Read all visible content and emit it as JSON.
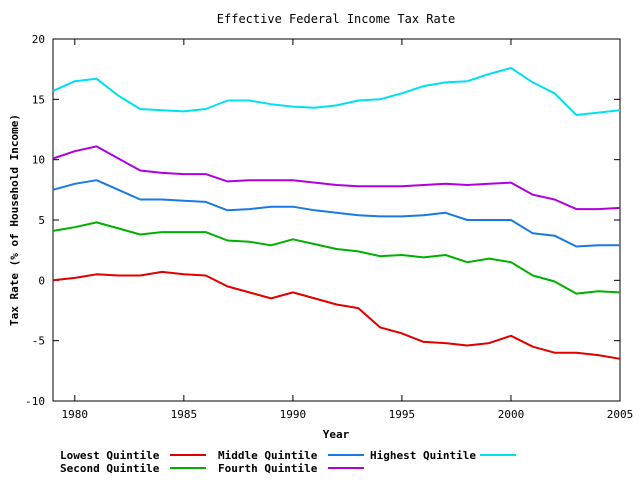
{
  "chart_data": {
    "type": "line",
    "title": "Effective Federal Income Tax Rate",
    "xlabel": "Year",
    "ylabel": "Tax Rate (% of Household Income)",
    "xlim": [
      1979,
      2005
    ],
    "ylim": [
      -10,
      20
    ],
    "x_ticks": [
      1980,
      1985,
      1990,
      1995,
      2000,
      2005
    ],
    "y_ticks": [
      -10,
      -5,
      0,
      5,
      10,
      15,
      20
    ],
    "grid": false,
    "legend_position": "bottom",
    "x": [
      1979,
      1980,
      1981,
      1982,
      1983,
      1984,
      1985,
      1986,
      1987,
      1988,
      1989,
      1990,
      1991,
      1992,
      1993,
      1994,
      1995,
      1996,
      1997,
      1998,
      1999,
      2000,
      2001,
      2002,
      2003,
      2004,
      2005
    ],
    "series": [
      {
        "name": "Lowest Quintile",
        "color": "#e00000",
        "values": [
          0.0,
          0.2,
          0.5,
          0.4,
          0.4,
          0.7,
          0.5,
          0.4,
          -0.5,
          -1.0,
          -1.5,
          -1.0,
          -1.5,
          -2.0,
          -2.3,
          -3.9,
          -4.4,
          -5.1,
          -5.2,
          -5.4,
          -5.2,
          -4.6,
          -5.5,
          -6.0,
          -6.0,
          -6.2,
          -6.5
        ]
      },
      {
        "name": "Second Quintile",
        "color": "#00b000",
        "values": [
          4.1,
          4.4,
          4.8,
          4.3,
          3.8,
          4.0,
          4.0,
          4.0,
          3.3,
          3.2,
          2.9,
          3.4,
          3.0,
          2.6,
          2.4,
          2.0,
          2.1,
          1.9,
          2.1,
          1.5,
          1.8,
          1.5,
          0.4,
          -0.1,
          -1.1,
          -0.9,
          -1.0
        ]
      },
      {
        "name": "Middle Quintile",
        "color": "#1a7ae0",
        "values": [
          7.5,
          8.0,
          8.3,
          7.5,
          6.7,
          6.7,
          6.6,
          6.5,
          5.8,
          5.9,
          6.1,
          6.1,
          5.8,
          5.6,
          5.4,
          5.3,
          5.3,
          5.4,
          5.6,
          5.0,
          5.0,
          5.0,
          3.9,
          3.7,
          2.8,
          2.9,
          2.9
        ]
      },
      {
        "name": "Fourth Quintile",
        "color": "#b000e0",
        "values": [
          10.1,
          10.7,
          11.1,
          10.1,
          9.1,
          8.9,
          8.8,
          8.8,
          8.2,
          8.3,
          8.3,
          8.3,
          8.1,
          7.9,
          7.8,
          7.8,
          7.8,
          7.9,
          8.0,
          7.9,
          8.0,
          8.1,
          7.1,
          6.7,
          5.9,
          5.9,
          6.0
        ]
      },
      {
        "name": "Highest Quintile",
        "color": "#00e0f0",
        "values": [
          15.7,
          16.5,
          16.7,
          15.3,
          14.2,
          14.1,
          14.0,
          14.2,
          14.9,
          14.9,
          14.6,
          14.4,
          14.3,
          14.5,
          14.9,
          15.0,
          15.5,
          16.1,
          16.4,
          16.5,
          17.1,
          17.6,
          16.4,
          15.5,
          13.7,
          13.9,
          14.1
        ]
      }
    ]
  }
}
